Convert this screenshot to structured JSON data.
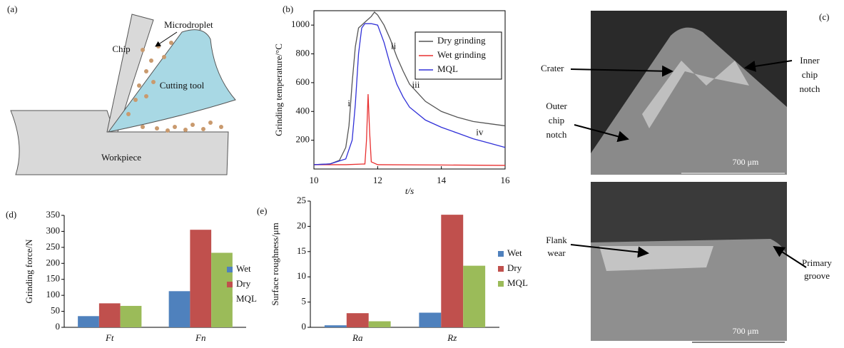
{
  "chart_data": [
    {
      "type": "line",
      "label": "(b)",
      "xlabel": "t/s",
      "ylabel": "Grinding temperature/°C",
      "xlim": [
        10,
        16
      ],
      "ylim": [
        0,
        1100
      ],
      "xticks": [
        10,
        12,
        14,
        16
      ],
      "yticks": [
        200,
        400,
        600,
        800,
        1000
      ],
      "legend": "top-right",
      "series": [
        {
          "name": "Dry grinding",
          "color": "#555555",
          "x": [
            10,
            10.5,
            10.8,
            11,
            11.1,
            11.2,
            11.3,
            11.4,
            11.6,
            11.8,
            11.9,
            12,
            12.2,
            12.4,
            12.6,
            12.8,
            13,
            13.5,
            14,
            14.5,
            15,
            15.5,
            16
          ],
          "values": [
            30,
            35,
            60,
            150,
            300,
            600,
            850,
            980,
            1020,
            1060,
            1090,
            1070,
            1000,
            900,
            780,
            680,
            590,
            470,
            400,
            360,
            330,
            315,
            300
          ]
        },
        {
          "name": "Wet grinding",
          "color": "#e83030",
          "x": [
            10,
            11,
            11.6,
            11.65,
            11.7,
            11.75,
            11.8,
            12,
            14,
            16
          ],
          "values": [
            30,
            30,
            35,
            200,
            520,
            250,
            50,
            30,
            28,
            25
          ]
        },
        {
          "name": "MQL",
          "color": "#3030d8",
          "x": [
            10,
            10.5,
            11,
            11.2,
            11.3,
            11.4,
            11.5,
            11.6,
            11.8,
            12,
            12.2,
            12.4,
            12.6,
            12.8,
            13,
            13.5,
            14,
            14.5,
            15,
            15.5,
            16
          ],
          "values": [
            30,
            35,
            70,
            200,
            450,
            800,
            980,
            1010,
            1010,
            1000,
            880,
            720,
            590,
            500,
            430,
            340,
            290,
            250,
            210,
            180,
            150
          ]
        }
      ],
      "annotations": [
        {
          "text": "i",
          "x": 11.1,
          "y": 450
        },
        {
          "text": "ii",
          "x": 12.5,
          "y": 850
        },
        {
          "text": "iii",
          "x": 13.2,
          "y": 580
        },
        {
          "text": "iv",
          "x": 15.2,
          "y": 250
        }
      ]
    },
    {
      "type": "bar",
      "label": "(d)",
      "ylabel": "Grinding force/N",
      "categories": [
        "Ft",
        "Fn"
      ],
      "ylim": [
        0,
        350
      ],
      "yticks": [
        0,
        50,
        100,
        150,
        200,
        250,
        300,
        350
      ],
      "series": [
        {
          "name": "Wet",
          "color": "#4f81bd",
          "values": [
            35,
            113
          ]
        },
        {
          "name": "Dry",
          "color": "#c0504d",
          "values": [
            75,
            305
          ]
        },
        {
          "name": "MQL",
          "color": "#9bbb59",
          "values": [
            67,
            233
          ]
        }
      ]
    },
    {
      "type": "bar",
      "label": "(e)",
      "ylabel": "Surface roughness/μm",
      "categories": [
        "Ra",
        "Rz"
      ],
      "ylim": [
        0,
        25
      ],
      "yticks": [
        0,
        5,
        10,
        15,
        20,
        25
      ],
      "series": [
        {
          "name": "Wet",
          "color": "#4f81bd",
          "values": [
            0.4,
            2.9
          ]
        },
        {
          "name": "Dry",
          "color": "#c0504d",
          "values": [
            2.8,
            22.3
          ]
        },
        {
          "name": "MQL",
          "color": "#9bbb59",
          "values": [
            1.2,
            12.2
          ]
        }
      ]
    }
  ],
  "diagram": {
    "label": "(a)",
    "chip": "Chip",
    "microdroplet": "Microdroplet",
    "tool": "Cutting tool",
    "workpiece": "Workpiece"
  },
  "micrographs": {
    "label": "(c)",
    "crater": "Crater",
    "inner": [
      "Inner",
      "chip",
      "notch"
    ],
    "outer": [
      "Outer",
      "chip",
      "notch"
    ],
    "flank": [
      "Flank",
      "wear"
    ],
    "groove": [
      "Primary",
      "groove"
    ],
    "scale_top": "700 μm",
    "scale_bottom": "700 μm"
  }
}
